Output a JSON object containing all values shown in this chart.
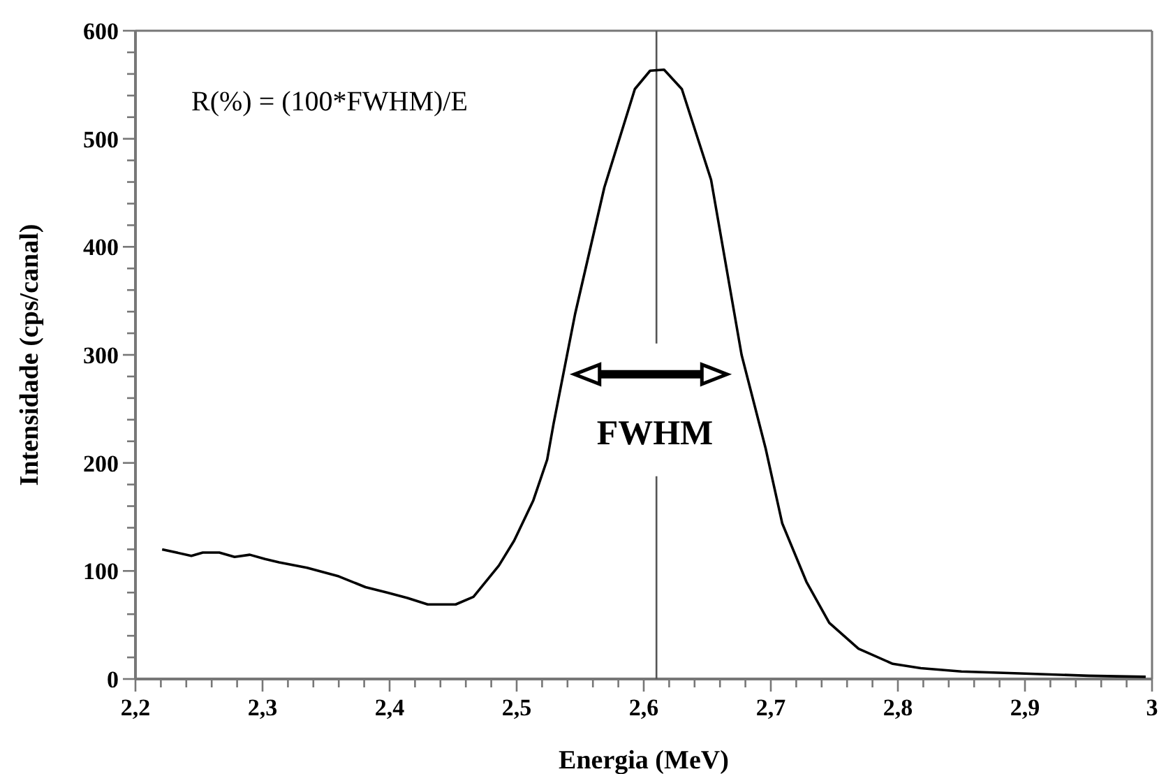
{
  "chart_data": {
    "type": "line",
    "xlabel": "Energia (MeV)",
    "ylabel": "Intensidade (cps/canal)",
    "annotations": [
      "R(%) = (100*FWHM)/E",
      "FWHM"
    ],
    "x": [
      2.221,
      2.244,
      2.253,
      2.266,
      2.278,
      2.29,
      2.302,
      2.313,
      2.335,
      2.36,
      2.381,
      2.398,
      2.414,
      2.43,
      2.452,
      2.466,
      2.486,
      2.498,
      2.513,
      2.524,
      2.529,
      2.546,
      2.569,
      2.593,
      2.605,
      2.616,
      2.63,
      2.653,
      2.677,
      2.696,
      2.709,
      2.728,
      2.746,
      2.769,
      2.796,
      2.818,
      2.85,
      2.9,
      2.95,
      2.995
    ],
    "series": [
      {
        "color": "#000000",
        "values": [
          120,
          114,
          117,
          117,
          113,
          115,
          111,
          108,
          103,
          95,
          85,
          80,
          75,
          69,
          69,
          76,
          105,
          128,
          165,
          203,
          236,
          338,
          455,
          546,
          563,
          564,
          546,
          462,
          300,
          213,
          144,
          90,
          52,
          28,
          14,
          10,
          7,
          5,
          3,
          2
        ]
      }
    ],
    "xlim": [
      2.2,
      3.0
    ],
    "ylim": [
      0,
      600
    ],
    "xticks": [
      {
        "value": 2.2,
        "label": "2,2"
      },
      {
        "value": 2.22,
        "label": null
      },
      {
        "value": 2.24,
        "label": null
      },
      {
        "value": 2.26,
        "label": null
      },
      {
        "value": 2.28,
        "label": null
      },
      {
        "value": 2.3,
        "label": "2,3"
      },
      {
        "value": 2.32,
        "label": null
      },
      {
        "value": 2.34,
        "label": null
      },
      {
        "value": 2.36,
        "label": null
      },
      {
        "value": 2.38,
        "label": null
      },
      {
        "value": 2.4,
        "label": "2,4"
      },
      {
        "value": 2.42,
        "label": null
      },
      {
        "value": 2.44,
        "label": null
      },
      {
        "value": 2.46,
        "label": null
      },
      {
        "value": 2.48,
        "label": null
      },
      {
        "value": 2.5,
        "label": "2,5"
      },
      {
        "value": 2.52,
        "label": null
      },
      {
        "value": 2.54,
        "label": null
      },
      {
        "value": 2.56,
        "label": null
      },
      {
        "value": 2.58,
        "label": null
      },
      {
        "value": 2.6,
        "label": "2,6"
      },
      {
        "value": 2.62,
        "label": null
      },
      {
        "value": 2.64,
        "label": null
      },
      {
        "value": 2.66,
        "label": null
      },
      {
        "value": 2.68,
        "label": null
      },
      {
        "value": 2.7,
        "label": "2,7"
      },
      {
        "value": 2.72,
        "label": null
      },
      {
        "value": 2.74,
        "label": null
      },
      {
        "value": 2.76,
        "label": null
      },
      {
        "value": 2.78,
        "label": null
      },
      {
        "value": 2.8,
        "label": "2,8"
      },
      {
        "value": 2.82,
        "label": null
      },
      {
        "value": 2.84,
        "label": null
      },
      {
        "value": 2.86,
        "label": null
      },
      {
        "value": 2.88,
        "label": null
      },
      {
        "value": 2.9,
        "label": "2,9"
      },
      {
        "value": 2.92,
        "label": null
      },
      {
        "value": 2.94,
        "label": null
      },
      {
        "value": 2.96,
        "label": null
      },
      {
        "value": 2.98,
        "label": null
      },
      {
        "value": 3.0,
        "label": "3"
      }
    ],
    "yticks": [
      0,
      {
        "value": 20,
        "label": null
      },
      {
        "value": 40,
        "label": null
      },
      {
        "value": 60,
        "label": null
      },
      {
        "value": 80,
        "label": null
      },
      100,
      {
        "value": 120,
        "label": null
      },
      {
        "value": 140,
        "label": null
      },
      {
        "value": 160,
        "label": null
      },
      {
        "value": 180,
        "label": null
      },
      200,
      {
        "value": 220,
        "label": null
      },
      {
        "value": 240,
        "label": null
      },
      {
        "value": 260,
        "label": null
      },
      {
        "value": 280,
        "label": null
      },
      300,
      {
        "value": 320,
        "label": null
      },
      {
        "value": 340,
        "label": null
      },
      {
        "value": 360,
        "label": null
      },
      {
        "value": 380,
        "label": null
      },
      400,
      {
        "value": 420,
        "label": null
      },
      {
        "value": 440,
        "label": null
      },
      {
        "value": 460,
        "label": null
      },
      {
        "value": 480,
        "label": null
      },
      500,
      {
        "value": 520,
        "label": null
      },
      {
        "value": 540,
        "label": null
      },
      {
        "value": 560,
        "label": null
      },
      {
        "value": 580,
        "label": null
      },
      600
    ],
    "ref_lines": [
      {
        "axis": "x",
        "value": 2.61,
        "color": "#555555"
      }
    ],
    "grid": false,
    "marker": "none",
    "line_style": "solid"
  }
}
